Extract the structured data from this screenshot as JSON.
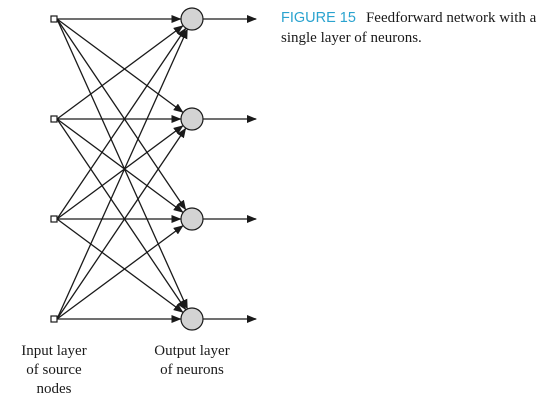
{
  "figure": {
    "label": "FIGURE 15",
    "caption": "Feedforward network with a single layer of neurons."
  },
  "labels": {
    "input_layer": [
      "Input layer",
      "of source",
      "nodes"
    ],
    "output_layer": [
      "Output layer",
      "of neurons"
    ]
  },
  "network": {
    "input_nodes": 4,
    "output_neurons": 4,
    "fully_connected": true,
    "neuron_fill": "#d3d3d3",
    "line_color": "#1a1a1a"
  },
  "colors": {
    "figure_label": "#2aa3cf"
  }
}
